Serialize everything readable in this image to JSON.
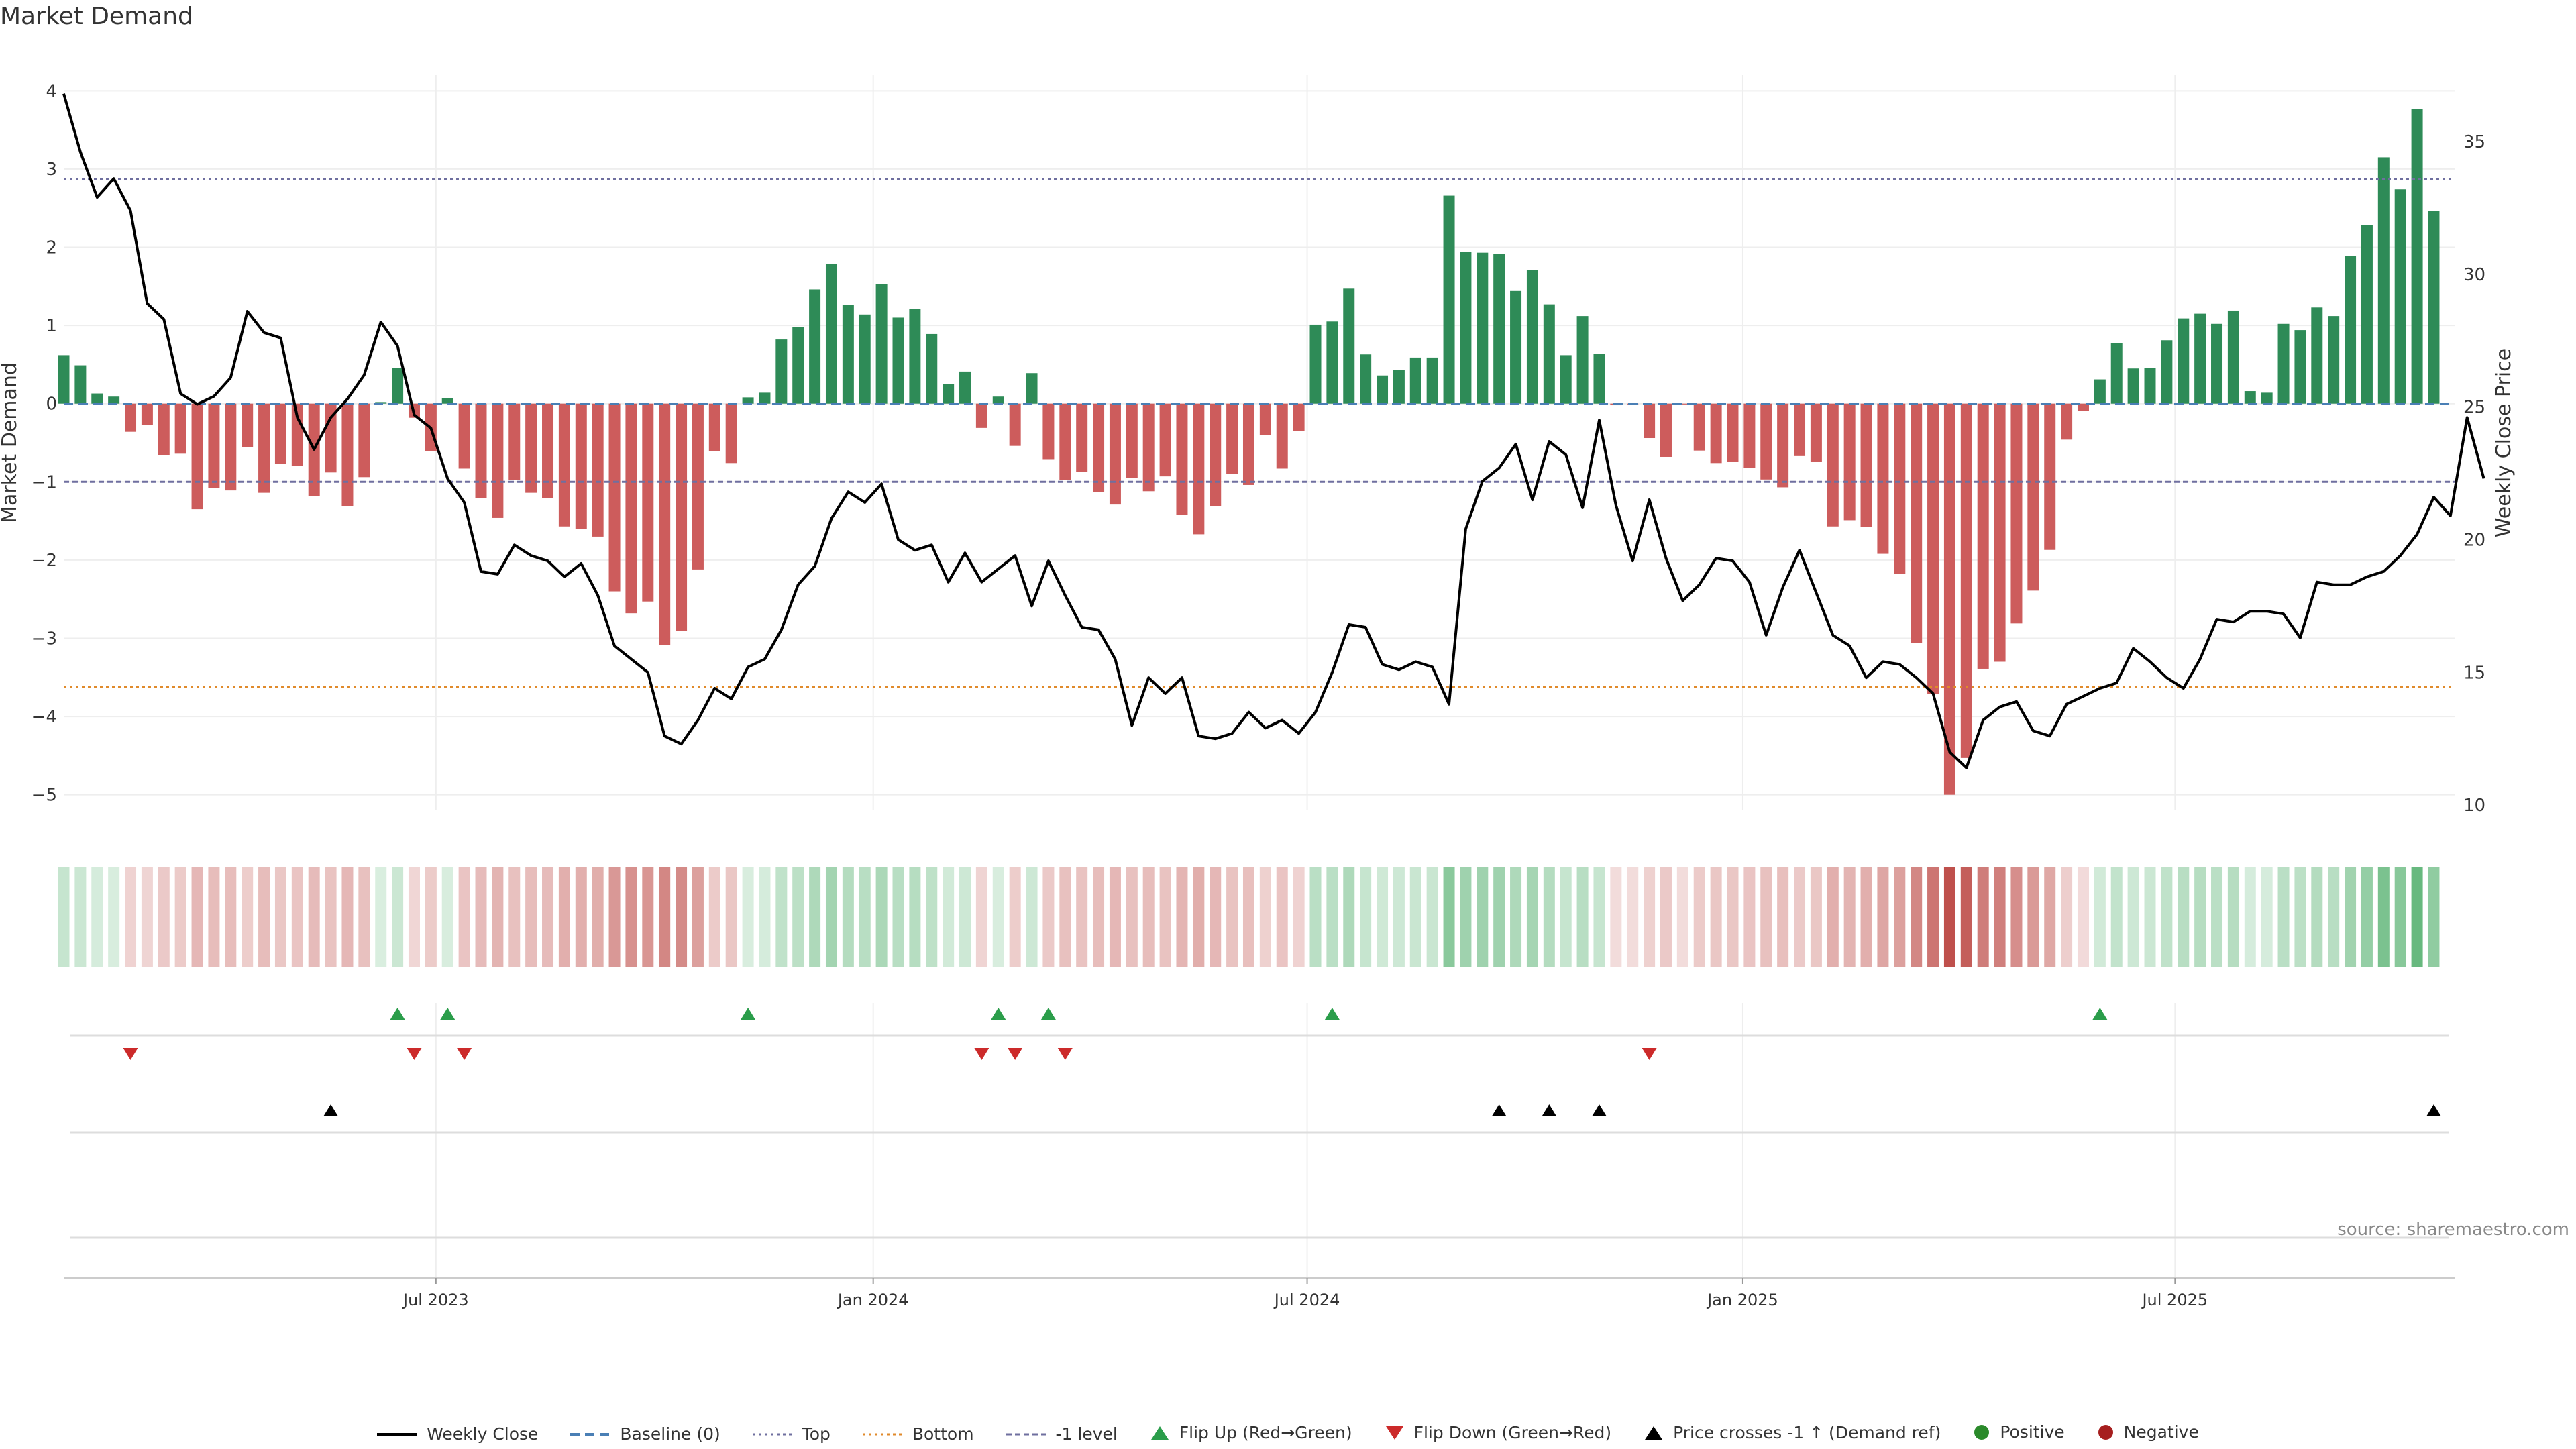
{
  "title": "Market Demand",
  "source": "source: sharemaestro.com",
  "colors": {
    "pos": "#2e8b57",
    "neg": "#cd5c5c",
    "price": "#000000",
    "baseline": "#4a7fb5",
    "top": "#6f6f9f",
    "bottom": "#e08a2b",
    "minus1": "#6f6f9f",
    "flipUp": "#2a9d4a",
    "flipDown": "#cc2a2a",
    "strip_pos": "#2e9e4e",
    "strip_neg": "#b83d38",
    "positive_dot": "#2a8a2a",
    "negative_dot": "#a61e1e"
  },
  "chart_data": {
    "type": "bar+line",
    "title": "Market Demand",
    "ylabel": "Market Demand",
    "y2label": "Weekly Close Price",
    "ylim": [
      -5.2,
      4.2
    ],
    "y2lim": [
      9.8,
      37.5
    ],
    "yticks": [
      "4",
      "3",
      "2",
      "1",
      "0",
      "−1",
      "−2",
      "−3",
      "−4",
      "−5"
    ],
    "yticks_values": [
      4,
      3,
      2,
      1,
      0,
      -1,
      -2,
      -3,
      -4,
      -5
    ],
    "y2ticks": [
      "35",
      "30",
      "25",
      "20",
      "15",
      "10"
    ],
    "y2ticks_values": [
      35,
      30,
      25,
      20,
      15,
      10
    ],
    "xticks": [
      "Jul 2023",
      "Jan 2024",
      "Jul 2024",
      "Jan 2025",
      "Jul 2025"
    ],
    "xticks_index": [
      22.3,
      48.5,
      74.5,
      100.6,
      126.5
    ],
    "top_level": 2.87,
    "bottom_level": -3.62,
    "minus1_level": -1.0,
    "demand": [
      0.62,
      0.49,
      0.13,
      0.09,
      -0.36,
      -0.27,
      -0.66,
      -0.64,
      -1.35,
      -1.08,
      -1.11,
      -0.56,
      -1.14,
      -0.77,
      -0.8,
      -1.18,
      -0.88,
      -1.31,
      -0.94,
      0.02,
      0.46,
      -0.18,
      -0.61,
      0.07,
      -0.83,
      -1.21,
      -1.46,
      -0.98,
      -1.14,
      -1.21,
      -1.57,
      -1.6,
      -1.7,
      -2.4,
      -2.68,
      -2.53,
      -3.09,
      -2.91,
      -2.12,
      -0.61,
      -0.76,
      0.08,
      0.14,
      0.82,
      0.98,
      1.46,
      1.79,
      1.26,
      1.14,
      1.53,
      1.1,
      1.21,
      0.89,
      0.25,
      0.41,
      -0.31,
      0.09,
      -0.54,
      0.39,
      -0.71,
      -0.98,
      -0.87,
      -1.13,
      -1.29,
      -0.95,
      -1.12,
      -0.93,
      -1.42,
      -1.67,
      -1.31,
      -0.9,
      -1.04,
      -0.4,
      -0.83,
      -0.35,
      1.01,
      1.05,
      1.47,
      0.63,
      0.36,
      0.43,
      0.59,
      0.59,
      2.66,
      1.94,
      1.93,
      1.91,
      1.44,
      1.71,
      1.27,
      0.62,
      1.12,
      0.64,
      -0.02,
      -0.01,
      -0.44,
      -0.68,
      -0.01,
      -0.6,
      -0.76,
      -0.74,
      -0.82,
      -0.97,
      -1.07,
      -0.67,
      -0.74,
      -1.57,
      -1.49,
      -1.58,
      -1.92,
      -2.18,
      -3.06,
      -3.71,
      -5.0,
      -4.53,
      -3.39,
      -3.3,
      -2.81,
      -2.39,
      -1.87,
      -0.46,
      -0.09,
      0.31,
      0.77,
      0.45,
      0.46,
      0.81,
      1.09,
      1.15,
      1.02,
      1.19,
      0.16,
      0.14,
      1.02,
      0.94,
      1.23,
      1.12,
      1.89,
      2.28,
      3.15,
      2.74,
      3.77,
      2.46
    ],
    "weekly_close": [
      36.8,
      34.6,
      32.9,
      33.6,
      32.4,
      28.9,
      28.3,
      25.5,
      25.1,
      25.4,
      26.1,
      28.6,
      27.8,
      27.6,
      24.6,
      23.4,
      24.6,
      25.3,
      26.2,
      28.2,
      27.3,
      24.7,
      24.2,
      22.3,
      21.4,
      18.8,
      18.7,
      19.8,
      19.4,
      19.2,
      18.6,
      19.1,
      17.9,
      16.0,
      15.5,
      15.0,
      12.6,
      12.3,
      13.2,
      14.4,
      14.0,
      15.2,
      15.5,
      16.6,
      18.3,
      19.0,
      20.8,
      21.8,
      21.4,
      22.1,
      20.0,
      19.6,
      19.8,
      18.4,
      19.5,
      18.4,
      18.9,
      19.4,
      17.5,
      19.2,
      17.9,
      16.7,
      16.6,
      15.5,
      13.0,
      14.8,
      14.2,
      14.8,
      12.6,
      12.5,
      12.7,
      13.5,
      12.9,
      13.2,
      12.7,
      13.5,
      15.0,
      16.8,
      16.7,
      15.3,
      15.1,
      15.4,
      15.2,
      13.8,
      20.4,
      22.2,
      22.7,
      23.6,
      21.5,
      23.7,
      23.2,
      21.2,
      24.5,
      21.3,
      19.2,
      21.5,
      19.3,
      17.7,
      18.3,
      19.3,
      19.2,
      18.4,
      16.4,
      18.2,
      19.6,
      18.0,
      16.4,
      16.0,
      14.8,
      15.4,
      15.3,
      14.8,
      14.2,
      12.0,
      11.4,
      13.2,
      13.7,
      13.9,
      12.8,
      12.6,
      13.8,
      14.1,
      14.4,
      14.6,
      15.9,
      15.4,
      14.8,
      14.4,
      15.5,
      17.0,
      16.9,
      17.3,
      17.3,
      17.2,
      16.3,
      18.4,
      18.3,
      18.3,
      18.6,
      18.8,
      19.4,
      20.2,
      21.6,
      20.9,
      24.6,
      22.3
    ],
    "flip_up_index": [
      20,
      23,
      41,
      56,
      59,
      76,
      122
    ],
    "flip_down_index": [
      4,
      21,
      24,
      55,
      57,
      60,
      95
    ],
    "price_cross_index": [
      16,
      86,
      89,
      92,
      142
    ]
  },
  "legend": {
    "weekly_close": "Weekly Close",
    "baseline": "Baseline (0)",
    "top": "Top",
    "bottom": "Bottom",
    "minus1": "-1 level",
    "flip_up": "Flip Up (Red→Green)",
    "flip_down": "Flip Down (Green→Red)",
    "price_cross": "Price crosses -1 ↑ (Demand ref)",
    "positive": "Positive",
    "negative": "Negative"
  }
}
